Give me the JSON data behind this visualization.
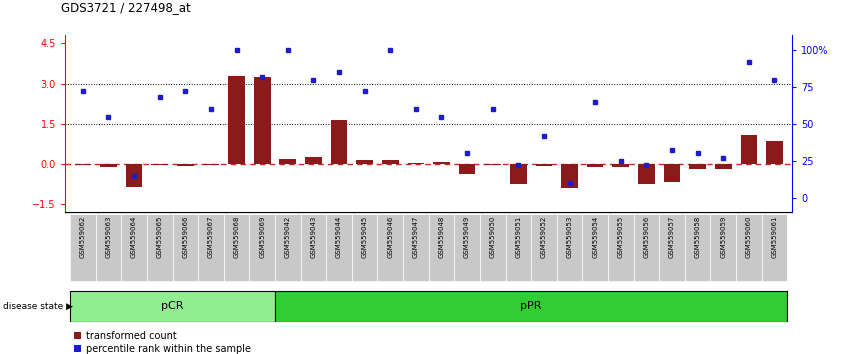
{
  "title": "GDS3721 / 227498_at",
  "samples": [
    "GSM559062",
    "GSM559063",
    "GSM559064",
    "GSM559065",
    "GSM559066",
    "GSM559067",
    "GSM559068",
    "GSM559069",
    "GSM559042",
    "GSM559043",
    "GSM559044",
    "GSM559045",
    "GSM559046",
    "GSM559047",
    "GSM559048",
    "GSM559049",
    "GSM559050",
    "GSM559051",
    "GSM559052",
    "GSM559053",
    "GSM559054",
    "GSM559055",
    "GSM559056",
    "GSM559057",
    "GSM559058",
    "GSM559059",
    "GSM559060",
    "GSM559061"
  ],
  "transformed_count": [
    -0.05,
    -0.1,
    -0.85,
    -0.05,
    -0.07,
    -0.05,
    3.3,
    3.25,
    0.2,
    0.25,
    1.65,
    0.15,
    0.15,
    0.03,
    0.08,
    -0.35,
    -0.04,
    -0.75,
    -0.08,
    -0.9,
    -0.1,
    -0.12,
    -0.75,
    -0.65,
    -0.18,
    -0.18,
    1.1,
    0.85
  ],
  "percentile_rank": [
    72,
    55,
    15,
    68,
    72,
    60,
    100,
    82,
    100,
    80,
    85,
    72,
    100,
    60,
    55,
    30,
    60,
    22,
    42,
    10,
    65,
    25,
    22,
    32,
    30,
    27,
    92,
    80
  ],
  "pCR_count": 8,
  "pPR_count": 20,
  "ylim_left": [
    -1.8,
    4.8
  ],
  "ylim_right": [
    -10,
    110
  ],
  "yticks_left": [
    -1.5,
    0.0,
    1.5,
    3.0,
    4.5
  ],
  "yticks_right": [
    0,
    25,
    50,
    75,
    100
  ],
  "hlines": [
    1.5,
    3.0
  ],
  "bar_color": "#8B1A1A",
  "dot_color": "#1C1CCD",
  "zero_line_color": "#CD2626",
  "pcr_color": "#90EE90",
  "ppr_color": "#32CD32",
  "label_bar": "transformed count",
  "label_dot": "percentile rank within the sample",
  "disease_state_label": "disease state"
}
